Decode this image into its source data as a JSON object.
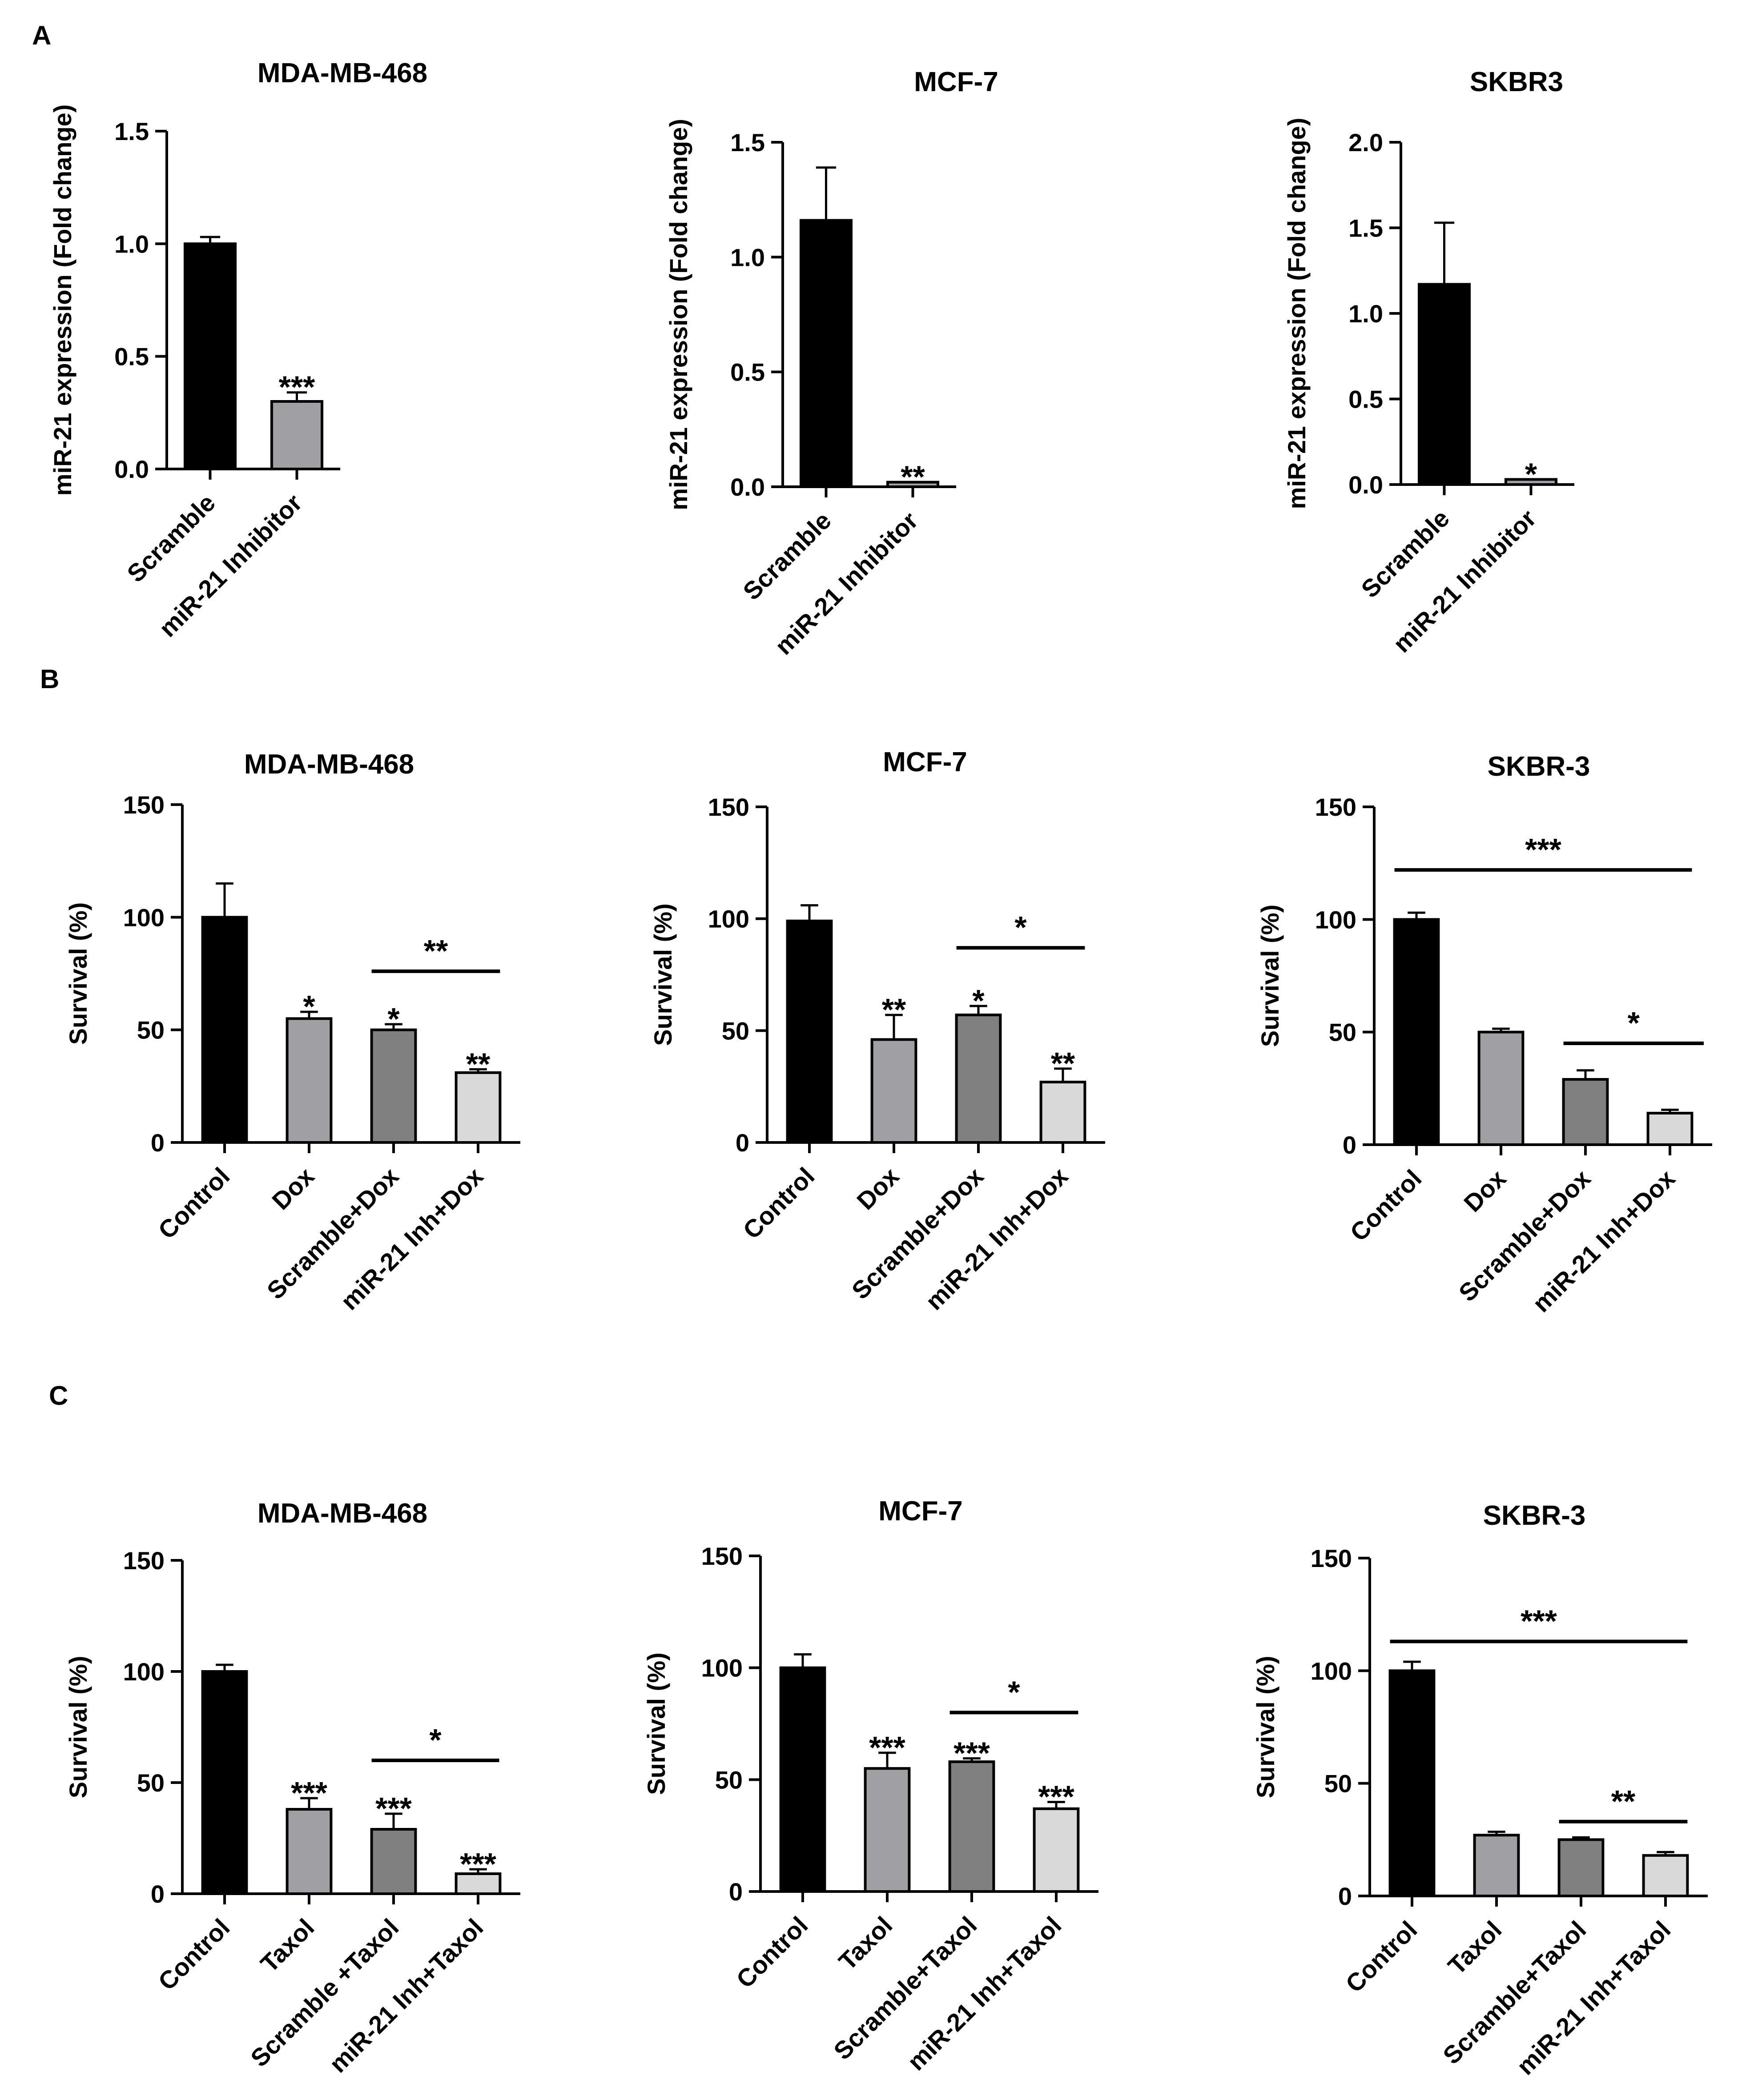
{
  "panel_labels": [
    "A",
    "B",
    "C"
  ],
  "chart_data": [
    {
      "panel": "A",
      "type": "bar",
      "title": "MDA-MB-468",
      "ylabel": "miR-21 expression (Fold change)",
      "xlabel": "",
      "ylim": [
        0,
        1.5
      ],
      "yticks": [
        0.0,
        0.5,
        1.0,
        1.5
      ],
      "ytick_labels": [
        "0.0",
        "0.5",
        "1.0",
        "1.5"
      ],
      "categories": [
        "Scramble",
        "miR-21 Inhibitor"
      ],
      "values": [
        1.0,
        0.3
      ],
      "errors": [
        0.03,
        0.04
      ],
      "colors": [
        "#000000",
        "#a0a0a4"
      ],
      "annotations": [
        "",
        "***"
      ],
      "brackets": []
    },
    {
      "panel": "A",
      "type": "bar",
      "title": "MCF-7",
      "ylabel": "miR-21 expression (Fold change)",
      "xlabel": "",
      "ylim": [
        0,
        1.5
      ],
      "yticks": [
        0.0,
        0.5,
        1.0,
        1.5
      ],
      "ytick_labels": [
        "0.0",
        "0.5",
        "1.0",
        "1.5"
      ],
      "categories": [
        "Scramble",
        "miR-21 Inhibitor"
      ],
      "values": [
        1.16,
        0.02
      ],
      "errors": [
        0.23,
        0.0
      ],
      "colors": [
        "#000000",
        "#a0a0a4"
      ],
      "annotations": [
        "",
        "**"
      ],
      "brackets": []
    },
    {
      "panel": "A",
      "type": "bar",
      "title": "SKBR3",
      "ylabel": "miR-21 expression (Fold change)",
      "xlabel": "",
      "ylim": [
        0,
        2.0
      ],
      "yticks": [
        0.0,
        0.5,
        1.0,
        1.5,
        2.0
      ],
      "ytick_labels": [
        "0.0",
        "0.5",
        "1.0",
        "1.5",
        "2.0"
      ],
      "categories": [
        "Scramble",
        "miR-21 Inhibitor"
      ],
      "values": [
        1.17,
        0.03
      ],
      "errors": [
        0.36,
        0.0
      ],
      "colors": [
        "#000000",
        "#a0a0a4"
      ],
      "annotations": [
        "",
        "*"
      ],
      "brackets": []
    },
    {
      "panel": "B",
      "type": "bar",
      "title": "MDA-MB-468",
      "ylabel": "Survival (%)",
      "xlabel": "",
      "ylim": [
        0,
        150
      ],
      "yticks": [
        0,
        50,
        100,
        150
      ],
      "ytick_labels": [
        "0",
        "50",
        "100",
        "150"
      ],
      "categories": [
        "Control",
        "Dox",
        "Scramble+Dox",
        "miR-21 Inh+Dox"
      ],
      "values": [
        100,
        55,
        50,
        31
      ],
      "errors": [
        15,
        3,
        2.5,
        1.5
      ],
      "colors": [
        "#000000",
        "#a0a0a4",
        "#808080",
        "#d9d9d9"
      ],
      "annotations": [
        "",
        "*",
        "*",
        "**"
      ],
      "brackets": [
        {
          "from": 2,
          "to": 3,
          "y": 76,
          "label": "**"
        }
      ]
    },
    {
      "panel": "B",
      "type": "bar",
      "title": "MCF-7",
      "ylabel": "Survival (%)",
      "xlabel": "",
      "ylim": [
        0,
        150
      ],
      "yticks": [
        0,
        50,
        100,
        150
      ],
      "ytick_labels": [
        "0",
        "50",
        "100",
        "150"
      ],
      "categories": [
        "Control",
        "Dox",
        "Scramble+Dox",
        "miR-21 Inh+Dox"
      ],
      "values": [
        99,
        46,
        57,
        27
      ],
      "errors": [
        7,
        11,
        4,
        6
      ],
      "colors": [
        "#000000",
        "#a0a0a4",
        "#808080",
        "#d9d9d9"
      ],
      "annotations": [
        "",
        "**",
        "*",
        "**"
      ],
      "brackets": [
        {
          "from": 2,
          "to": 3,
          "y": 87,
          "label": "*"
        }
      ]
    },
    {
      "panel": "B",
      "type": "bar",
      "title": "SKBR-3",
      "ylabel": "Survival (%)",
      "xlabel": "",
      "ylim": [
        0,
        150
      ],
      "yticks": [
        0,
        50,
        100,
        150
      ],
      "ytick_labels": [
        "0",
        "50",
        "100",
        "150"
      ],
      "categories": [
        "Control",
        "Dox",
        "Scramble+Dox",
        "miR-21 Inh+Dox"
      ],
      "values": [
        100,
        50,
        29,
        14
      ],
      "errors": [
        3,
        1.5,
        4,
        1.5
      ],
      "colors": [
        "#000000",
        "#a0a0a4",
        "#808080",
        "#d9d9d9"
      ],
      "annotations": [
        "",
        "",
        "",
        ""
      ],
      "brackets": [
        {
          "from": 0,
          "to": 3,
          "y": 122,
          "label": "***"
        },
        {
          "from": 2,
          "to": 3.4,
          "y": 45,
          "label": "*"
        }
      ]
    },
    {
      "panel": "C",
      "type": "bar",
      "title": "MDA-MB-468",
      "ylabel": "Survival (%)",
      "xlabel": "",
      "ylim": [
        0,
        150
      ],
      "yticks": [
        0,
        50,
        100,
        150
      ],
      "ytick_labels": [
        "0",
        "50",
        "100",
        "150"
      ],
      "categories": [
        "Control",
        "Taxol",
        "Scramble +Taxol",
        "miR-21 Inh+Taxol"
      ],
      "values": [
        100,
        38,
        29,
        9
      ],
      "errors": [
        3,
        5,
        7,
        2
      ],
      "colors": [
        "#000000",
        "#a0a0a4",
        "#808080",
        "#d9d9d9"
      ],
      "annotations": [
        "",
        "***",
        "***",
        "***"
      ],
      "brackets": [
        {
          "from": 2,
          "to": 3.25,
          "y": 60,
          "label": "*"
        }
      ]
    },
    {
      "panel": "C",
      "type": "bar",
      "title": "MCF-7",
      "ylabel": "Survival (%)",
      "xlabel": "",
      "ylim": [
        0,
        150
      ],
      "yticks": [
        0,
        50,
        100,
        150
      ],
      "ytick_labels": [
        "0",
        "50",
        "100",
        "150"
      ],
      "categories": [
        "Control",
        "Taxol",
        "Scramble+Taxol",
        "miR-21 Inh+Taxol"
      ],
      "values": [
        100,
        55,
        58,
        37
      ],
      "errors": [
        6,
        7,
        1.5,
        3
      ],
      "colors": [
        "#000000",
        "#a0a0a4",
        "#808080",
        "#d9d9d9"
      ],
      "annotations": [
        "",
        "***",
        "***",
        "***"
      ],
      "brackets": [
        {
          "from": 2,
          "to": 3,
          "y": 80,
          "label": "*"
        }
      ]
    },
    {
      "panel": "C",
      "type": "bar",
      "title": "SKBR-3",
      "ylabel": "Survival (%)",
      "xlabel": "",
      "ylim": [
        0,
        150
      ],
      "yticks": [
        0,
        50,
        100,
        150
      ],
      "ytick_labels": [
        "0",
        "50",
        "100",
        "150"
      ],
      "categories": [
        "Control",
        "Taxol",
        "Scramble+Taxol",
        "miR-21 Inh+Taxol"
      ],
      "values": [
        100,
        27,
        25,
        18
      ],
      "errors": [
        4,
        1.5,
        1,
        1.5
      ],
      "colors": [
        "#000000",
        "#a0a0a4",
        "#808080",
        "#d9d9d9"
      ],
      "annotations": [
        "",
        "",
        "",
        ""
      ],
      "brackets": [
        {
          "from": 0,
          "to": 3,
          "y": 113,
          "label": "***"
        },
        {
          "from": 2,
          "to": 3,
          "y": 33,
          "label": "**"
        }
      ]
    }
  ]
}
